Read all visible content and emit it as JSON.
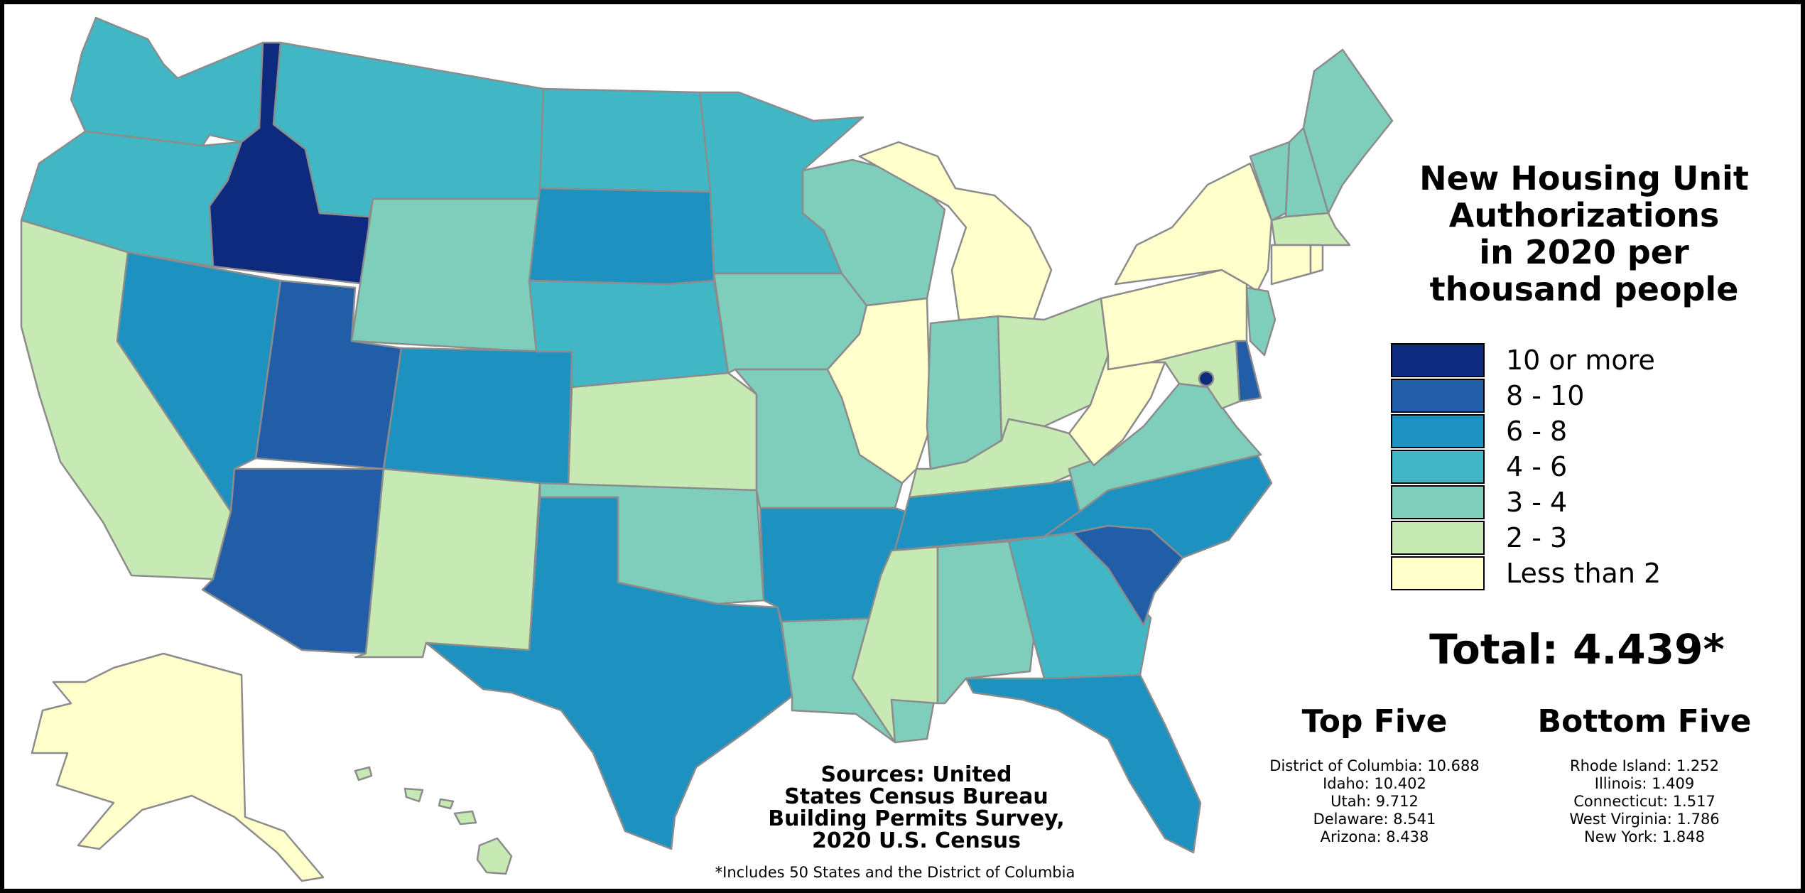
{
  "title_lines": [
    "New Housing Unit",
    "Authorizations",
    "in 2020 per",
    "thousand people"
  ],
  "legend": [
    {
      "label": "10 or more",
      "color": "#0d2a7e"
    },
    {
      "label": "8 - 10",
      "color": "#225ea8"
    },
    {
      "label": "6 - 8",
      "color": "#1d91c0"
    },
    {
      "label": "4 - 6",
      "color": "#41b6c4"
    },
    {
      "label": "3 - 4",
      "color": "#7fcdbb"
    },
    {
      "label": "2 - 3",
      "color": "#c7e9b4"
    },
    {
      "label": "Less than 2",
      "color": "#ffffcc"
    }
  ],
  "total": "Total: 4.439*",
  "top_five": {
    "heading": "Top Five",
    "items": [
      "District of Columbia: 10.688",
      "Idaho: 10.402",
      "Utah: 9.712",
      "Delaware: 8.541",
      "Arizona: 8.438"
    ]
  },
  "bottom_five": {
    "heading": "Bottom Five",
    "items": [
      "Rhode Island: 1.252",
      "Illinois: 1.409",
      "Connecticut: 1.517",
      "West Virginia: 1.786",
      "New York: 1.848"
    ]
  },
  "sources_lines": [
    "Sources: United",
    "States Census Bureau",
    "Building Permits Survey,",
    "2020 U.S. Census"
  ],
  "footnote": "*Includes 50 States and the District of Columbia",
  "state_categories": {
    "WA": "4 - 6",
    "OR": "4 - 6",
    "CA": "2 - 3",
    "ID": "10 or more",
    "NV": "6 - 8",
    "MT": "4 - 6",
    "WY": "3 - 4",
    "UT": "8 - 10",
    "AZ": "8 - 10",
    "CO": "6 - 8",
    "NM": "2 - 3",
    "ND": "4 - 6",
    "SD": "6 - 8",
    "NE": "4 - 6",
    "KS": "2 - 3",
    "OK": "3 - 4",
    "TX": "6 - 8",
    "MN": "4 - 6",
    "IA": "3 - 4",
    "MO": "3 - 4",
    "AR": "6 - 8",
    "LA": "3 - 4",
    "WI": "3 - 4",
    "IL": "Less than 2",
    "MI": "Less than 2",
    "IN": "3 - 4",
    "OH": "2 - 3",
    "KY": "2 - 3",
    "TN": "6 - 8",
    "MS": "2 - 3",
    "AL": "3 - 4",
    "GA": "4 - 6",
    "FL": "6 - 8",
    "SC": "8 - 10",
    "NC": "6 - 8",
    "VA": "3 - 4",
    "WV": "Less than 2",
    "PA": "Less than 2",
    "NY": "Less than 2",
    "VT": "3 - 4",
    "NH": "3 - 4",
    "ME": "3 - 4",
    "MA": "2 - 3",
    "CT": "Less than 2",
    "RI": "Less than 2",
    "NJ": "3 - 4",
    "DE": "8 - 10",
    "MD": "2 - 3",
    "DC": "10 or more",
    "AK": "Less than 2",
    "HI": "2 - 3"
  }
}
